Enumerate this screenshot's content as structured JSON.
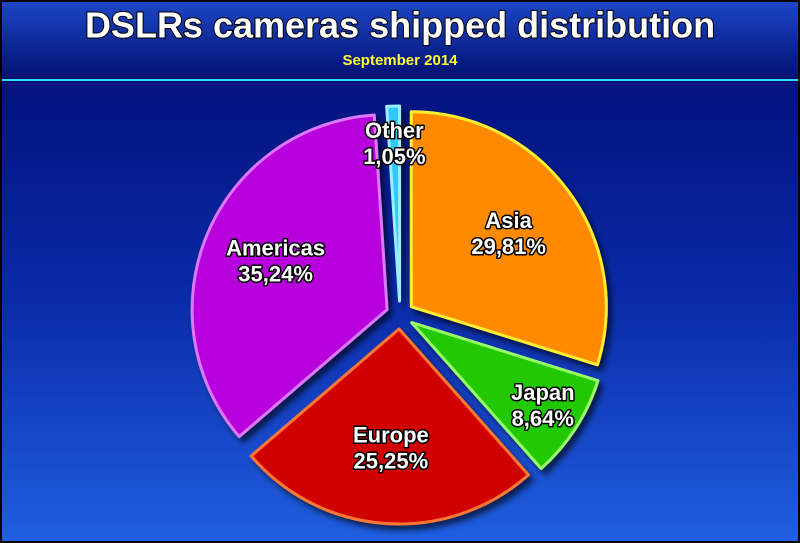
{
  "chart_data": {
    "type": "pie",
    "title": "DSLRs cameras shipped distribution",
    "subtitle": "September 2014",
    "categories": [
      "Asia",
      "Japan",
      "Europe",
      "Americas",
      "Other"
    ],
    "values": [
      29.81,
      8.64,
      25.25,
      35.24,
      1.05
    ],
    "value_labels": [
      "29,81%",
      "8,64%",
      "25,25%",
      "35,24%",
      "1,05%"
    ],
    "colors": [
      "#ff8a00",
      "#22c800",
      "#d00000",
      "#b800dc",
      "#33c8ff"
    ],
    "edge_colors": [
      "#ffee33",
      "#99ff66",
      "#ff7733",
      "#dd77ff",
      "#99eeff"
    ]
  }
}
